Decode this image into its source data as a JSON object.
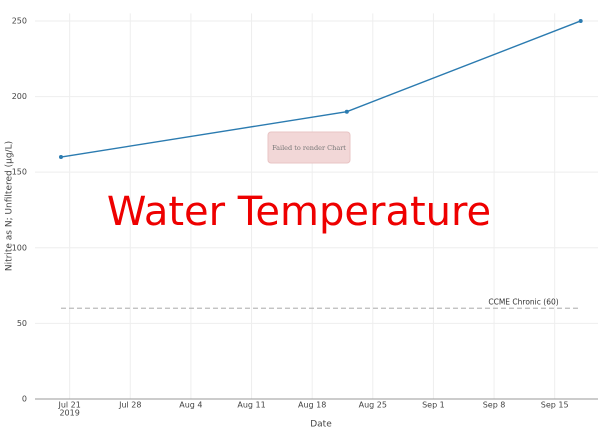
{
  "chart_data": {
    "type": "line",
    "title": "Water Temperature",
    "notice": "Failed to render Chart",
    "x_label": "Date",
    "y_label": "Nitrite as N; Unfiltered (µg/L)",
    "x": [
      "2019-07-20",
      "2019-08-22",
      "2019-09-18"
    ],
    "series": [
      {
        "name": "Nitrite as N; Unfiltered",
        "color": "#2b7bb0",
        "values": [
          160,
          190,
          250
        ]
      }
    ],
    "reference_line": {
      "value": 60,
      "label": "CCME Chronic (60)",
      "color": "#bbbbbb"
    },
    "xlim": [
      "2019-07-17",
      "2019-09-20"
    ],
    "xticks": [
      {
        "value": "2019-07-21",
        "label": "Jul 21",
        "sublabel": "2019"
      },
      {
        "value": "2019-07-28",
        "label": "Jul 28"
      },
      {
        "value": "2019-08-04",
        "label": "Aug 4"
      },
      {
        "value": "2019-08-11",
        "label": "Aug 11"
      },
      {
        "value": "2019-08-18",
        "label": "Aug 18"
      },
      {
        "value": "2019-08-25",
        "label": "Aug 25"
      },
      {
        "value": "2019-09-01",
        "label": "Sep 1"
      },
      {
        "value": "2019-09-08",
        "label": "Sep 8"
      },
      {
        "value": "2019-09-15",
        "label": "Sep 15"
      }
    ],
    "ylim": [
      0,
      255
    ],
    "yticks": [
      0,
      50,
      100,
      150,
      200,
      250
    ],
    "grid": true
  }
}
